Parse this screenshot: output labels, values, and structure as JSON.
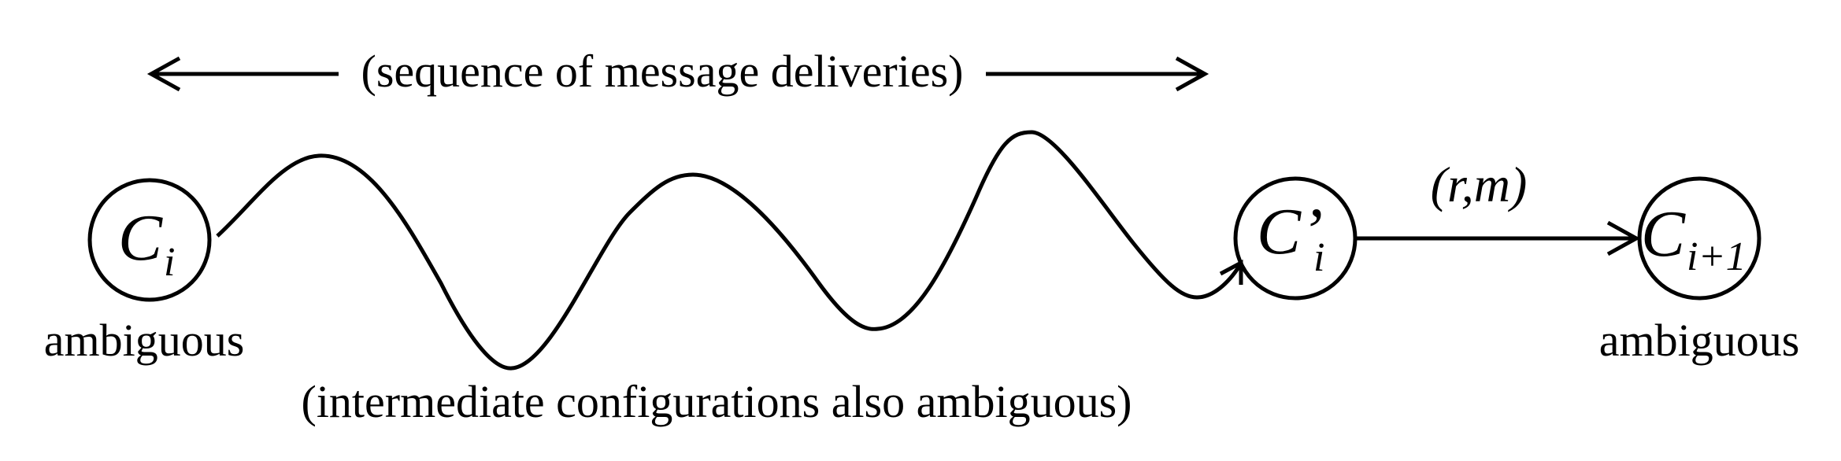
{
  "top_label": "(sequence of message deliveries)",
  "bottom_label": "(intermediate configurations also ambiguous)",
  "nodes": {
    "ci": {
      "symbol": "C",
      "subscript": "i",
      "caption": "ambiguous"
    },
    "ci_prime": {
      "symbol": "C’",
      "subscript": "i"
    },
    "ci1": {
      "symbol": "C",
      "subscript": "i+1",
      "caption": "ambiguous"
    }
  },
  "edge_label": "(r,m)",
  "colors": {
    "ink": "#000000",
    "background": "#ffffff"
  }
}
